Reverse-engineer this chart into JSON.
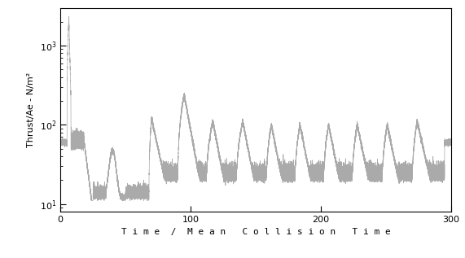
{
  "title": "",
  "xlabel": "T i m e  /  M e a n   C o l l i s i o n   T i m e",
  "ylabel": "Thrust/Ae - N/m²",
  "xlim": [
    0,
    300
  ],
  "ylim": [
    8,
    3000
  ],
  "xticks": [
    0,
    100,
    200,
    300
  ],
  "yticks": [
    10,
    100,
    1000
  ],
  "line_color": "#aaaaaa",
  "background_color": "#ffffff",
  "figsize": [
    5.71,
    3.17
  ],
  "dpi": 100
}
